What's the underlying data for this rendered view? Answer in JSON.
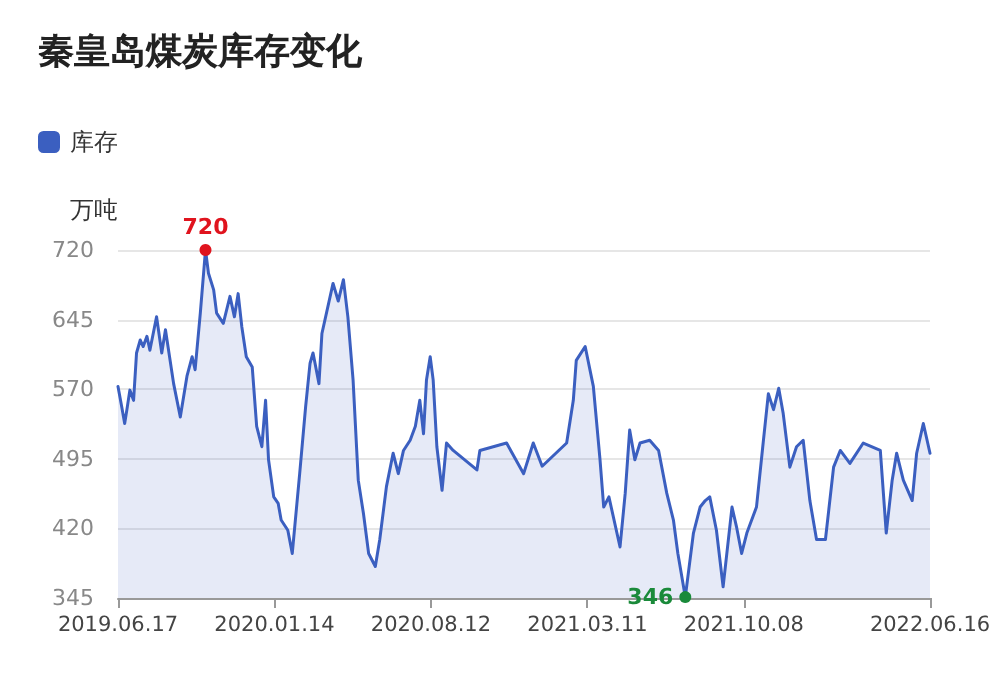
{
  "chart_data": {
    "type": "area",
    "title": "秦皇岛煤炭库存变化",
    "ylabel": "万吨",
    "legend": "top left",
    "grid": "y",
    "marker": "none",
    "x": [
      "2019-06-17",
      "2019-06-22",
      "2019-06-26",
      "2019-06-29",
      "2019-07-03",
      "2019-07-08",
      "2019-07-12",
      "2019-07-17",
      "2019-07-21",
      "2019-07-26",
      "2019-07-30",
      "2019-08-08",
      "2019-08-15",
      "2019-08-20",
      "2019-08-31",
      "2019-09-09",
      "2019-09-18",
      "2019-09-25",
      "2019-09-29",
      "2019-10-06",
      "2019-10-13",
      "2019-10-17",
      "2019-10-24",
      "2019-10-28",
      "2019-11-06",
      "2019-11-15",
      "2019-11-21",
      "2019-11-26",
      "2019-12-01",
      "2019-12-07",
      "2019-12-15",
      "2019-12-21",
      "2019-12-28",
      "2020-01-02",
      "2020-01-06",
      "2020-01-13",
      "2020-01-19",
      "2020-01-23",
      "2020-02-01",
      "2020-02-07",
      "2020-02-17",
      "2020-02-25",
      "2020-03-02",
      "2020-03-06",
      "2020-03-14",
      "2020-03-18",
      "2020-04-02",
      "2020-04-09",
      "2020-04-16",
      "2020-04-22",
      "2020-04-29",
      "2020-05-06",
      "2020-05-13",
      "2020-05-20",
      "2020-05-29",
      "2020-06-04",
      "2020-06-13",
      "2020-06-22",
      "2020-06-29",
      "2020-07-06",
      "2020-07-15",
      "2020-07-22",
      "2020-07-28",
      "2020-08-02",
      "2020-08-06",
      "2020-08-11",
      "2020-08-15",
      "2020-08-20",
      "2020-08-27",
      "2020-09-02",
      "2020-09-11",
      "2020-10-13",
      "2020-10-17",
      "2020-11-22",
      "2020-12-15",
      "2020-12-28",
      "2021-01-09",
      "2021-02-11",
      "2021-02-20",
      "2021-02-24",
      "2021-03-08",
      "2021-03-19",
      "2021-03-28",
      "2021-04-02",
      "2021-04-09",
      "2021-04-24",
      "2021-05-01",
      "2021-05-07",
      "2021-05-14",
      "2021-05-21",
      "2021-06-03",
      "2021-06-15",
      "2021-06-26",
      "2021-07-05",
      "2021-07-11",
      "2021-07-21",
      "2021-08-01",
      "2021-08-10",
      "2021-08-17",
      "2021-08-23",
      "2021-09-01",
      "2021-09-10",
      "2021-09-22",
      "2021-09-28",
      "2021-10-05",
      "2021-10-12",
      "2021-10-25",
      "2021-11-03",
      "2021-11-10",
      "2021-11-17",
      "2021-11-24",
      "2021-11-30",
      "2021-12-09",
      "2021-12-18",
      "2021-12-27",
      "2022-01-05",
      "2022-01-14",
      "2022-01-26",
      "2022-02-06",
      "2022-02-15",
      "2022-02-28",
      "2022-03-18",
      "2022-04-10",
      "2022-04-18",
      "2022-04-26",
      "2022-05-02",
      "2022-05-11",
      "2022-05-23",
      "2022-05-29",
      "2022-06-07",
      "2022-06-16"
    ],
    "series": [
      {
        "name": "库存",
        "color": "#3b5fc0",
        "values": [
          573,
          551,
          533,
          548,
          569,
          558,
          609,
          623,
          616,
          627,
          612,
          648,
          609,
          634,
          576,
          540,
          584,
          605,
          591,
          652,
          720,
          695,
          677,
          652,
          641,
          670,
          648,
          673,
          637,
          605,
          594,
          530,
          508,
          558,
          494,
          454,
          447,
          429,
          418,
          393,
          479,
          551,
          598,
          609,
          576,
          630,
          684,
          665,
          688,
          648,
          580,
          472,
          436,
          393,
          379,
          408,
          465,
          501,
          479,
          504,
          515,
          530,
          558,
          522,
          580,
          605,
          580,
          508,
          461,
          512,
          504,
          483,
          504,
          512,
          479,
          512,
          487,
          512,
          558,
          601,
          616,
          573,
          494,
          443,
          454,
          400,
          458,
          526,
          494,
          512,
          515,
          504,
          458,
          429,
          393,
          346,
          415,
          443,
          450,
          454,
          418,
          357,
          443,
          422,
          393,
          415,
          443,
          512,
          565,
          548,
          571,
          544,
          486,
          508,
          515,
          450,
          408,
          408,
          486,
          504,
          490,
          512,
          504,
          415,
          472,
          501,
          472,
          450,
          501,
          533,
          501
        ]
      }
    ],
    "xlim": [
      "2019-06-17",
      "2022-06-16"
    ],
    "xticks": [
      {
        "value": "2019-06-17",
        "label": "2019.06.17"
      },
      {
        "value": "2020-01-14",
        "label": "2020.01.14"
      },
      {
        "value": "2020-08-12",
        "label": "2020.08.12"
      },
      {
        "value": "2021-03-11",
        "label": "2021.03.11"
      },
      {
        "value": "2021-10-08",
        "label": "2021.10.08"
      },
      {
        "value": "2022-06-16",
        "label": "2022.06.16"
      }
    ],
    "ylim": [
      345,
      720
    ],
    "yticks": [
      345,
      420,
      495,
      570,
      645,
      720
    ],
    "annotations": [
      {
        "text": "720",
        "x": "2019-10-13",
        "y": 720
      },
      {
        "text": "346",
        "x": "2021-07-21",
        "y": 346
      }
    ]
  }
}
